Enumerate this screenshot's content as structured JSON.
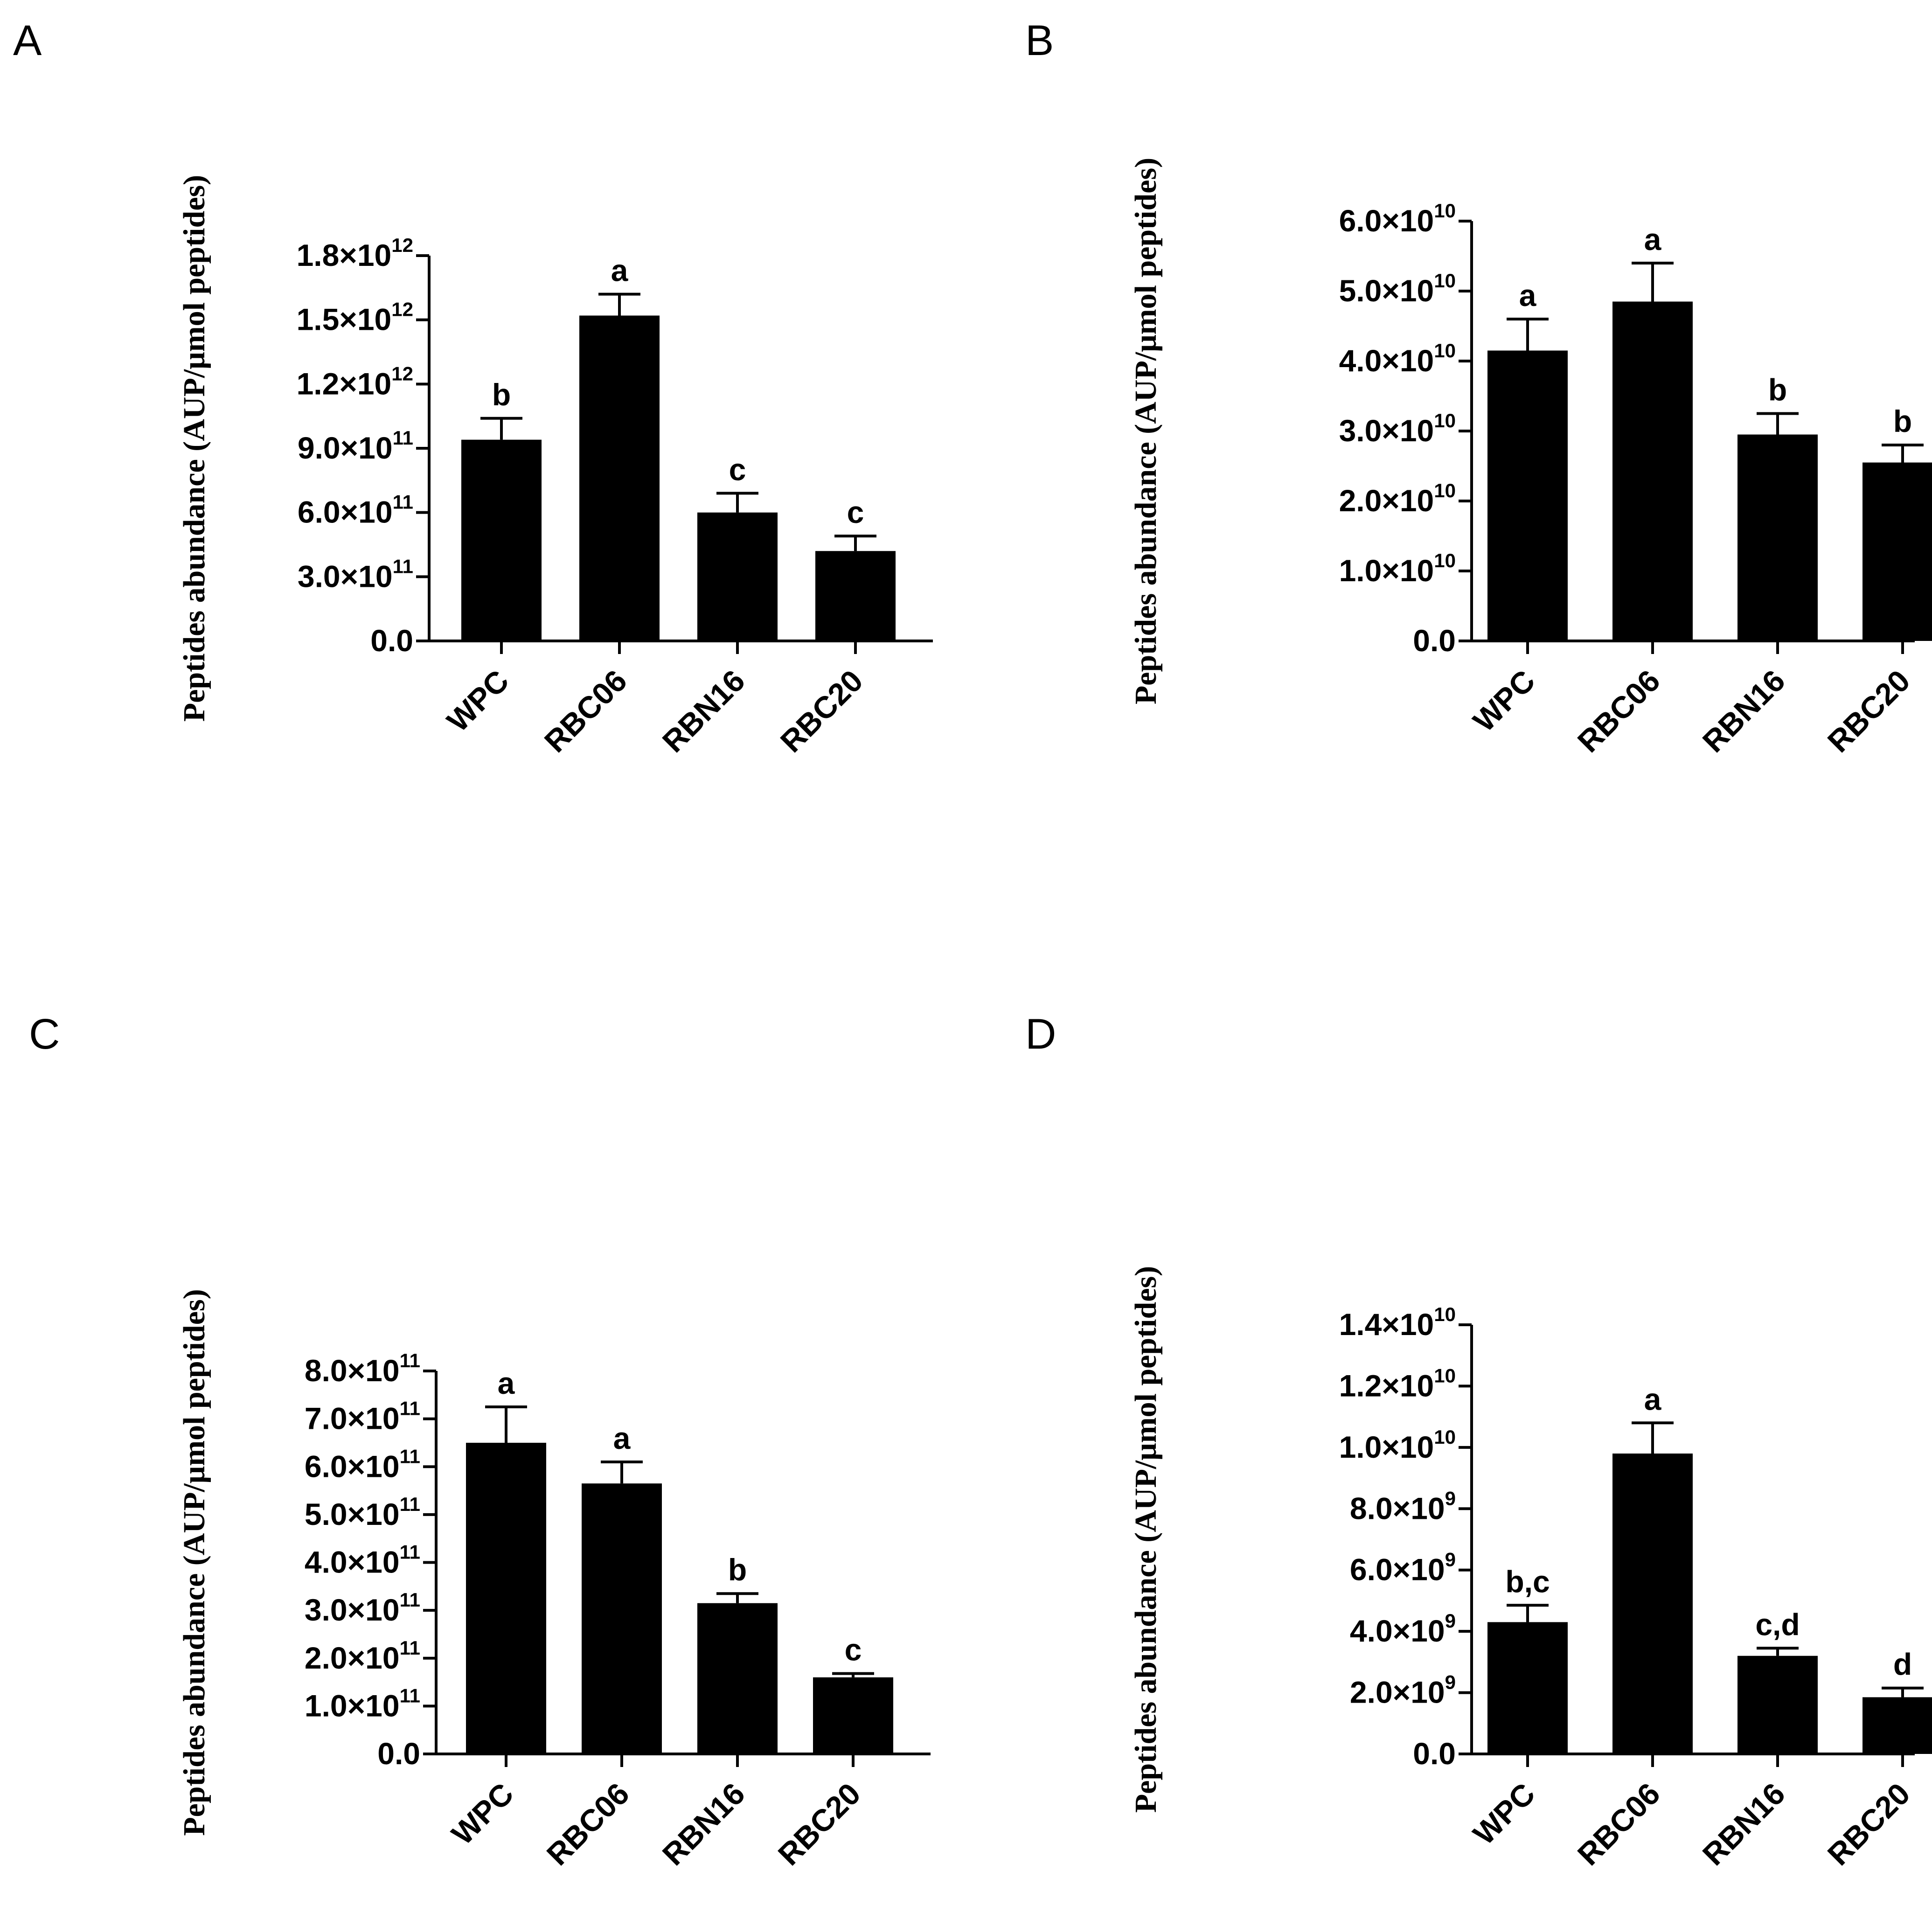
{
  "colors": {
    "bar": "#000000",
    "background": "#ffffff"
  },
  "chart_data": [
    {
      "panel": "A",
      "type": "bar",
      "title": "",
      "xlabel": "",
      "ylabel": "Peptides abundance (AUP/μmol peptides)",
      "categories": [
        "WPC",
        "RBC06",
        "RBN16",
        "RBC20"
      ],
      "values": [
        940000000000.0,
        1520000000000.0,
        600000000000.0,
        420000000000.0
      ],
      "errors": [
        100000000000.0,
        100000000000.0,
        90000000000.0,
        70000000000.0
      ],
      "significance": [
        "b",
        "a",
        "c",
        "c"
      ],
      "ylim": [
        0,
        1800000000000.0
      ],
      "yticks": [
        {
          "mantissa": "0.0",
          "exp": ""
        },
        {
          "mantissa": "3.0×10",
          "exp": "11"
        },
        {
          "mantissa": "6.0×10",
          "exp": "11"
        },
        {
          "mantissa": "9.0×10",
          "exp": "11"
        },
        {
          "mantissa": "1.2×10",
          "exp": "12"
        },
        {
          "mantissa": "1.5×10",
          "exp": "12"
        },
        {
          "mantissa": "1.8×10",
          "exp": "12"
        }
      ]
    },
    {
      "panel": "B",
      "type": "bar",
      "title": "",
      "xlabel": "",
      "ylabel": "Peptides abundance (AUP/μmol peptides)",
      "categories": [
        "WPC",
        "RBC06",
        "RBN16",
        "RBC20"
      ],
      "values": [
        41500000000.0,
        48500000000.0,
        29500000000.0,
        25500000000.0
      ],
      "errors": [
        4500000000.0,
        5500000000.0,
        3000000000.0,
        2500000000.0
      ],
      "significance": [
        "a",
        "a",
        "b",
        "b"
      ],
      "ylim": [
        0,
        60000000000.0
      ],
      "yticks": [
        {
          "mantissa": "0.0",
          "exp": ""
        },
        {
          "mantissa": "1.0×10",
          "exp": "10"
        },
        {
          "mantissa": "2.0×10",
          "exp": "10"
        },
        {
          "mantissa": "3.0×10",
          "exp": "10"
        },
        {
          "mantissa": "4.0×10",
          "exp": "10"
        },
        {
          "mantissa": "5.0×10",
          "exp": "10"
        },
        {
          "mantissa": "6.0×10",
          "exp": "10"
        }
      ]
    },
    {
      "panel": "C",
      "type": "bar",
      "title": "",
      "xlabel": "",
      "ylabel": "Peptides abundance (AUP/μmol peptides)",
      "categories": [
        "WPC",
        "RBC06",
        "RBN16",
        "RBC20"
      ],
      "values": [
        650000000000.0,
        565000000000.0,
        315000000000.0,
        160000000000.0
      ],
      "errors": [
        75000000000.0,
        45000000000.0,
        20000000000.0,
        8000000000.0
      ],
      "significance": [
        "a",
        "a",
        "b",
        "c"
      ],
      "ylim": [
        0,
        800000000000.0
      ],
      "yticks": [
        {
          "mantissa": "0.0",
          "exp": ""
        },
        {
          "mantissa": "1.0×10",
          "exp": "11"
        },
        {
          "mantissa": "2.0×10",
          "exp": "11"
        },
        {
          "mantissa": "3.0×10",
          "exp": "11"
        },
        {
          "mantissa": "4.0×10",
          "exp": "11"
        },
        {
          "mantissa": "5.0×10",
          "exp": "11"
        },
        {
          "mantissa": "6.0×10",
          "exp": "11"
        },
        {
          "mantissa": "7.0×10",
          "exp": "11"
        },
        {
          "mantissa": "8.0×10",
          "exp": "11"
        }
      ]
    },
    {
      "panel": "D",
      "type": "bar",
      "title": "",
      "xlabel": "",
      "ylabel": "Peptides abundance (AUP/μmol peptides)",
      "categories": [
        "WPC",
        "RBC06",
        "RBN16",
        "RBC20"
      ],
      "values": [
        4300000000.0,
        9800000000.0,
        3200000000.0,
        1850000000.0
      ],
      "errors": [
        550000000.0,
        1000000000.0,
        250000000.0,
        300000000.0
      ],
      "significance": [
        "b,c",
        "a",
        "c,d",
        "d"
      ],
      "ylim": [
        0,
        14000000000.0
      ],
      "yticks": [
        {
          "mantissa": "0.0",
          "exp": ""
        },
        {
          "mantissa": "2.0×10",
          "exp": "9"
        },
        {
          "mantissa": "4.0×10",
          "exp": "9"
        },
        {
          "mantissa": "6.0×10",
          "exp": "9"
        },
        {
          "mantissa": "8.0×10",
          "exp": "9"
        },
        {
          "mantissa": "1.0×10",
          "exp": "10"
        },
        {
          "mantissa": "1.2×10",
          "exp": "10"
        },
        {
          "mantissa": "1.4×10",
          "exp": "10"
        }
      ]
    }
  ]
}
